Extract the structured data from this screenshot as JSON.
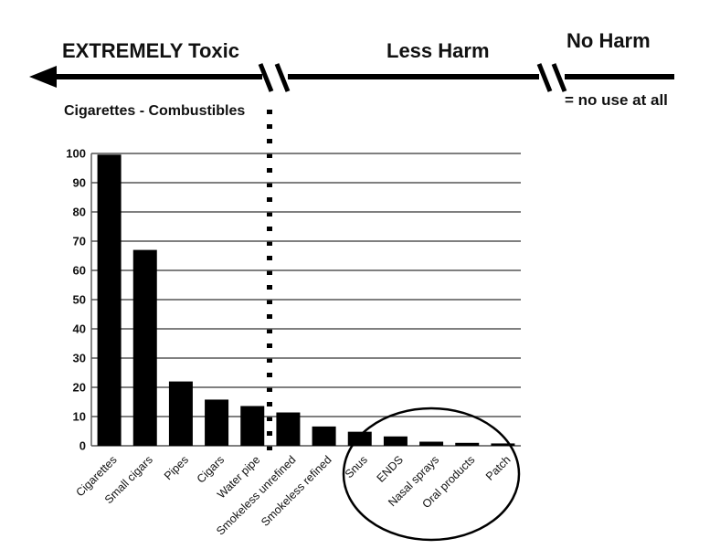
{
  "header": {
    "left_label": "EXTREMELY Toxic",
    "middle_label": "Less Harm",
    "right_label": "No Harm",
    "right_note": "= no use at all",
    "section_label": "Cigarettes - Combustibles"
  },
  "chart_data": {
    "type": "bar",
    "categories": [
      "Cigarettes",
      "Small cigars",
      "Pipes",
      "Cigars",
      "Water pipe",
      "Smokeless unrefined",
      "Smokeless refined",
      "Snus",
      "ENDS",
      "Nasal sprays",
      "Oral products",
      "Patch"
    ],
    "values": [
      99.6,
      67,
      22,
      15.8,
      13.6,
      11.4,
      6.6,
      4.8,
      3.2,
      1.4,
      1.0,
      0.8
    ],
    "ylim": [
      0,
      100
    ],
    "yticks": [
      0,
      10,
      20,
      30,
      40,
      50,
      60,
      70,
      80,
      90,
      100
    ],
    "grid": true,
    "bar_color": "#000000",
    "grid_color": "#555555"
  }
}
